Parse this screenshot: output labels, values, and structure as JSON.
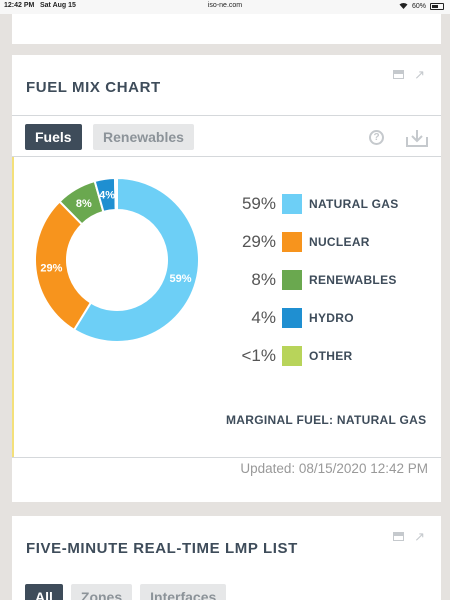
{
  "status_bar": {
    "time": "12:42 PM",
    "date": "Sat Aug 15",
    "url": "iso-ne.com",
    "battery": "60%",
    "battery_level": 0.6
  },
  "fuel_mix": {
    "title": "FUEL MIX CHART",
    "tabs": [
      {
        "label": "Fuels",
        "active": true
      },
      {
        "label": "Renewables",
        "active": false
      }
    ],
    "legend": [
      {
        "pct": "59%",
        "label": "NATURAL GAS",
        "color": "#6dcff6"
      },
      {
        "pct": "29%",
        "label": "NUCLEAR",
        "color": "#f7941d"
      },
      {
        "pct": "8%",
        "label": "RENEWABLES",
        "color": "#6aa84f"
      },
      {
        "pct": "4%",
        "label": "HYDRO",
        "color": "#1f8fd1"
      },
      {
        "pct": "<1%",
        "label": "OTHER",
        "color": "#b8d45a"
      }
    ],
    "marginal_fuel": "MARGINAL FUEL: NATURAL GAS",
    "updated": "Updated: 08/15/2020 12:42 PM"
  },
  "chart_data": {
    "type": "pie",
    "categories": [
      "NATURAL GAS",
      "NUCLEAR",
      "RENEWABLES",
      "HYDRO",
      "OTHER"
    ],
    "values": [
      59,
      29,
      8,
      4,
      0.4
    ],
    "slice_labels": [
      "59%",
      "29%",
      "8%",
      "4%",
      ""
    ],
    "colors": [
      "#6dcff6",
      "#f7941d",
      "#6aa84f",
      "#1f8fd1",
      "#b8d45a"
    ],
    "donut": true,
    "legend_position": "right"
  },
  "lmp_list": {
    "title": "FIVE-MINUTE REAL-TIME LMP LIST",
    "tabs": [
      {
        "label": "All",
        "active": true
      },
      {
        "label": "Zones",
        "active": false
      },
      {
        "label": "Interfaces",
        "active": false
      }
    ]
  },
  "icons": {
    "minimize": "minimize-icon",
    "expand": "expand-arrow-icon",
    "help": "help-icon",
    "download": "download-icon"
  }
}
